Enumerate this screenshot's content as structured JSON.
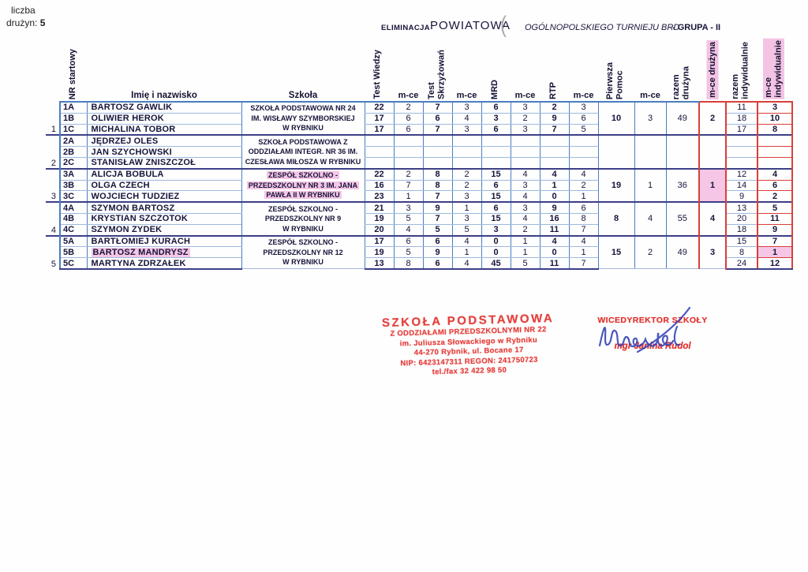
{
  "top_left": {
    "line1": "liczba",
    "line2": "drużyn:",
    "count": "5"
  },
  "header": {
    "eliminacja": "ELIMINACJA",
    "powiatowa": "POWIATOWA",
    "paren": "(",
    "tournament": "OGÓLNOPOLSKIEGO TURNIEJU BRD",
    "group": "- GRUPA - II"
  },
  "columns": {
    "nr": "NR startowy",
    "name": "Imię i nazwisko",
    "school": "Szkoła",
    "test_wiedzy": "Test Wiedzy",
    "mce": "m-ce",
    "test_skrzyzowan": "Test Skrzyżowań",
    "mrd": "MRD",
    "rtp": "RTP",
    "pierwsza_pomoc": "Pierwsza Pomoc",
    "razem_druzyna": "razem drużyna",
    "mce_druzyna": "m-ce drużyna",
    "razem_indywidualnie": "razem indywidualnie",
    "mce_indywidualnie": "m-ce indywidualnie"
  },
  "colors": {
    "grid_blue": "#4a7ec0",
    "row_blue": "#9fb9de",
    "team_separator": "#3c3f86",
    "red_outline": "#d8403a",
    "highlight_pink": "#f5c6e6",
    "stamp_red": "#e3322e",
    "ink_blue": "#2c3cb4"
  },
  "teams": [
    {
      "number": "1",
      "school_lines": [
        "SZKOŁA PODSTAWOWA NR 24",
        "IM. WISŁAWY SZYMBORSKIEJ",
        "W RYBNIKU"
      ],
      "school_highlight": false,
      "pomoc": "10",
      "pomoc_mce": "3",
      "razem": "49",
      "mce_druzyna": "2",
      "mce_druzyna_highlight": false,
      "members": [
        {
          "nr": "1A",
          "name": "BARTOSZ GAWLIK",
          "highlight_name": false,
          "scores": [
            "22",
            "2",
            "7",
            "3",
            "6",
            "3",
            "2",
            "3"
          ],
          "razem_ind": "11",
          "mce_ind": "3",
          "highlight_mce": false
        },
        {
          "nr": "1B",
          "name": "OLIWIER HEROK",
          "highlight_name": false,
          "scores": [
            "17",
            "6",
            "6",
            "4",
            "3",
            "2",
            "9",
            "6"
          ],
          "razem_ind": "18",
          "mce_ind": "10",
          "highlight_mce": false
        },
        {
          "nr": "1C",
          "name": "MICHALINA TOBOR",
          "highlight_name": false,
          "scores": [
            "17",
            "6",
            "7",
            "3",
            "6",
            "3",
            "7",
            "5"
          ],
          "razem_ind": "17",
          "mce_ind": "8",
          "highlight_mce": false
        }
      ]
    },
    {
      "number": "2",
      "school_lines": [
        "SZKOŁA PODSTAWOWA Z",
        "ODDZIAŁAMI INTEGR.  NR 36 IM.",
        "CZESŁAWA MIŁOSZA W RYBNIKU"
      ],
      "school_highlight": false,
      "pomoc": "",
      "pomoc_mce": "",
      "razem": "",
      "mce_druzyna": "",
      "mce_druzyna_highlight": false,
      "members": [
        {
          "nr": "2A",
          "name": "JĘDRZEJ OLES",
          "highlight_name": false,
          "scores": [
            "",
            "",
            "",
            "",
            "",
            "",
            "",
            ""
          ],
          "razem_ind": "",
          "mce_ind": "",
          "highlight_mce": false
        },
        {
          "nr": "2B",
          "name": "JAN SZYCHOWSKI",
          "highlight_name": false,
          "scores": [
            "",
            "",
            "",
            "",
            "",
            "",
            "",
            ""
          ],
          "razem_ind": "",
          "mce_ind": "",
          "highlight_mce": false
        },
        {
          "nr": "2C",
          "name": "STANISŁAW ZNISZCZOŁ",
          "highlight_name": false,
          "scores": [
            "",
            "",
            "",
            "",
            "",
            "",
            "",
            ""
          ],
          "razem_ind": "",
          "mce_ind": "",
          "highlight_mce": false
        }
      ]
    },
    {
      "number": "3",
      "school_lines": [
        "ZESPÓŁ SZKOLNO -",
        "PRZEDSZKOLNY NR 3 IM. JANA",
        "PAWŁA II W RYBNIKU"
      ],
      "school_highlight": true,
      "pomoc": "19",
      "pomoc_mce": "1",
      "razem": "36",
      "mce_druzyna": "1",
      "mce_druzyna_highlight": true,
      "members": [
        {
          "nr": "3A",
          "name": "ALICJA BOBULA",
          "highlight_name": false,
          "scores": [
            "22",
            "2",
            "8",
            "2",
            "15",
            "4",
            "4",
            "4"
          ],
          "razem_ind": "12",
          "mce_ind": "4",
          "highlight_mce": false
        },
        {
          "nr": "3B",
          "name": "OLGA CZECH",
          "highlight_name": false,
          "scores": [
            "16",
            "7",
            "8",
            "2",
            "6",
            "3",
            "1",
            "2"
          ],
          "razem_ind": "14",
          "mce_ind": "6",
          "highlight_mce": false
        },
        {
          "nr": "3C",
          "name": "WOJCIECH TUDZIEZ",
          "highlight_name": false,
          "scores": [
            "23",
            "1",
            "7",
            "3",
            "15",
            "4",
            "0",
            "1"
          ],
          "razem_ind": "9",
          "mce_ind": "2",
          "highlight_mce": false
        }
      ]
    },
    {
      "number": "4",
      "school_lines": [
        "ZESPÓŁ SZKOLNO -",
        "PRZEDSZKOLNY NR 9",
        "W RYBNIKU"
      ],
      "school_highlight": false,
      "pomoc": "8",
      "pomoc_mce": "4",
      "razem": "55",
      "mce_druzyna": "4",
      "mce_druzyna_highlight": false,
      "members": [
        {
          "nr": "4A",
          "name": "SZYMON BARTOSZ",
          "highlight_name": false,
          "scores": [
            "21",
            "3",
            "9",
            "1",
            "6",
            "3",
            "9",
            "6"
          ],
          "razem_ind": "13",
          "mce_ind": "5",
          "highlight_mce": false
        },
        {
          "nr": "4B",
          "name": "KRYSTIAN SZCZOTOK",
          "highlight_name": false,
          "scores": [
            "19",
            "5",
            "7",
            "3",
            "15",
            "4",
            "16",
            "8"
          ],
          "razem_ind": "20",
          "mce_ind": "11",
          "highlight_mce": false
        },
        {
          "nr": "4C",
          "name": "SZYMON ZYDEK",
          "highlight_name": false,
          "scores": [
            "20",
            "4",
            "5",
            "5",
            "3",
            "2",
            "11",
            "7"
          ],
          "razem_ind": "18",
          "mce_ind": "9",
          "highlight_mce": false
        }
      ]
    },
    {
      "number": "5",
      "school_lines": [
        "ZESPÓŁ SZKOLNO -",
        "PRZEDSZKOLNY NR 12",
        "W RYBNIKU"
      ],
      "school_highlight": false,
      "pomoc": "15",
      "pomoc_mce": "2",
      "razem": "49",
      "mce_druzyna": "3",
      "mce_druzyna_highlight": false,
      "members": [
        {
          "nr": "5A",
          "name": "BARTŁOMIEJ KURACH",
          "highlight_name": false,
          "scores": [
            "17",
            "6",
            "6",
            "4",
            "0",
            "1",
            "4",
            "4"
          ],
          "razem_ind": "15",
          "mce_ind": "7",
          "highlight_mce": false
        },
        {
          "nr": "5B",
          "name": "BARTOSZ MANDRYSZ",
          "highlight_name": true,
          "scores": [
            "19",
            "5",
            "9",
            "1",
            "0",
            "1",
            "0",
            "1"
          ],
          "razem_ind": "8",
          "mce_ind": "1",
          "highlight_mce": true
        },
        {
          "nr": "5C",
          "name": "MARTYNA ZDRZAŁEK",
          "highlight_name": false,
          "scores": [
            "13",
            "8",
            "6",
            "4",
            "45",
            "5",
            "11",
            "7"
          ],
          "razem_ind": "24",
          "mce_ind": "12",
          "highlight_mce": false
        }
      ]
    }
  ],
  "stamps": {
    "school_stamp": {
      "lines": [
        "SZKOŁA PODSTAWOWA",
        "Z ODDZIAŁAMI PRZEDSZKOLNYMI NR 22",
        "im. Juliusza Słowackiego w Rybniku",
        "44-270 Rybnik, ul. Bocane 17",
        "NIP: 6423147311   REGON: 241750723",
        "tel./fax 32 422 98 50"
      ]
    },
    "signature_stamp": {
      "title": "WICEDYREKTOR SZKOŁY",
      "name": "mgr Janina Rudol"
    }
  }
}
